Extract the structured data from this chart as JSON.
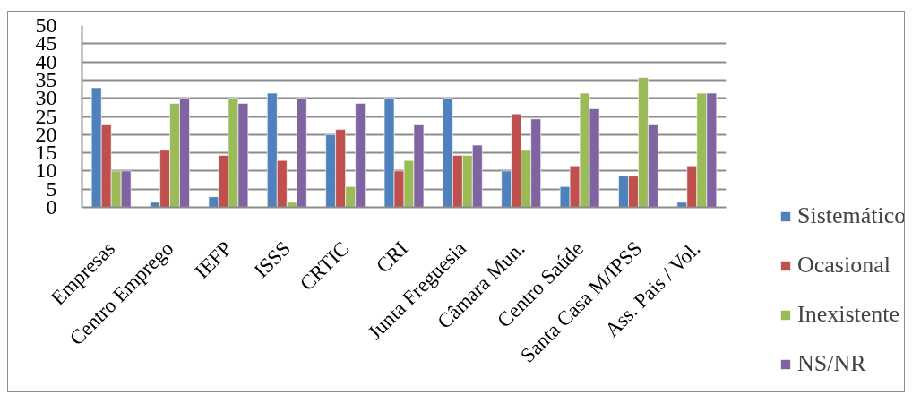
{
  "chart_data": {
    "type": "bar",
    "categories": [
      "Empresas",
      "Centro Emprego",
      "IEFP",
      "ISSS",
      "CRTIC",
      "CRI",
      "Junta Freguesia",
      "Câmara Mun.",
      "Centro Saúde",
      "Santa Casa M/IPSS",
      "Ass. Pais / Vol."
    ],
    "series": [
      {
        "name": "Sistemático",
        "color": "#4f81bd",
        "values": [
          32.9,
          1.4,
          2.9,
          31.4,
          20,
          30,
          30,
          10,
          5.7,
          8.6,
          1.4
        ]
      },
      {
        "name": "Ocasional",
        "color": "#c0504d",
        "values": [
          22.9,
          15.7,
          14.3,
          12.9,
          21.4,
          10,
          14.3,
          25.7,
          11.4,
          8.6,
          11.4
        ]
      },
      {
        "name": "Inexistente",
        "color": "#9bbb59",
        "values": [
          10,
          28.6,
          30,
          1.4,
          5.7,
          12.9,
          14.3,
          15.7,
          31.4,
          35.7,
          31.4
        ]
      },
      {
        "name": "NS/NR",
        "color": "#8064a2",
        "values": [
          10,
          30,
          28.6,
          30,
          28.6,
          22.9,
          17.1,
          24.3,
          27.1,
          22.9,
          31.4
        ]
      }
    ],
    "ylim": [
      0,
      50
    ],
    "yticks": [
      0,
      5,
      10,
      15,
      20,
      25,
      30,
      35,
      40,
      45,
      50
    ],
    "grid": "y",
    "legend": "right"
  }
}
